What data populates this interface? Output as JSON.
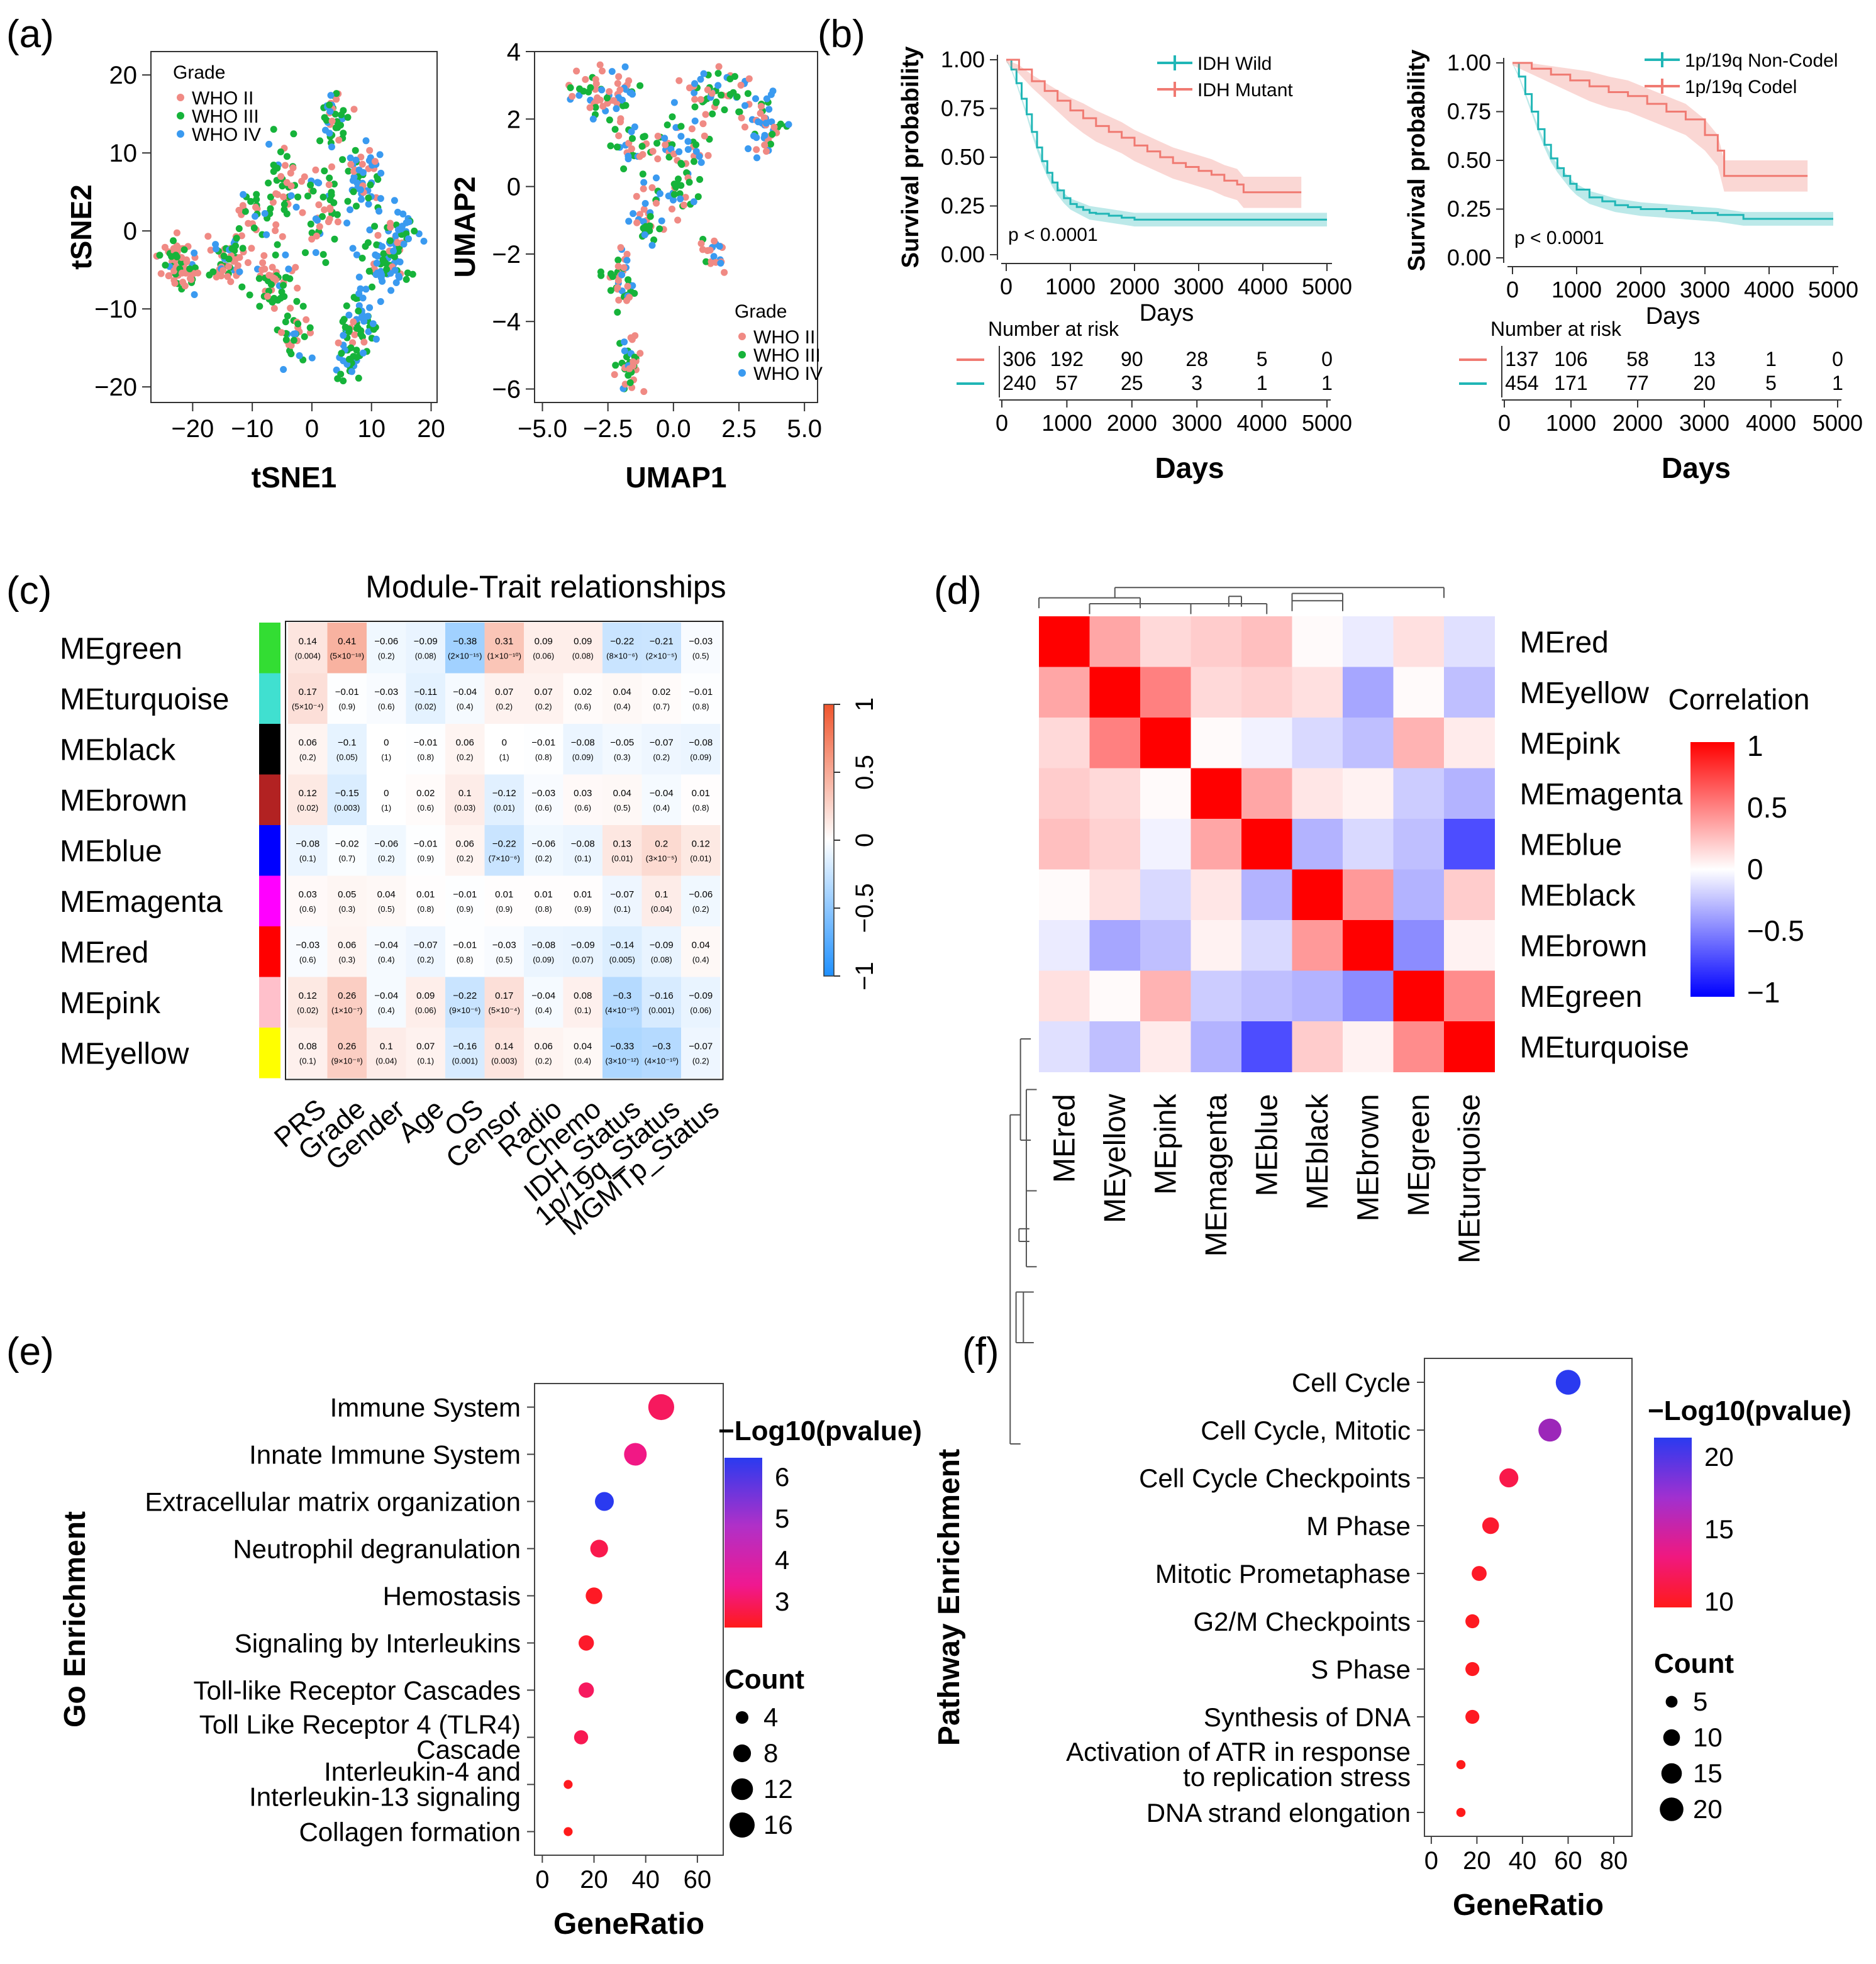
{
  "palette": {
    "who2": "#F08A84",
    "who3": "#16B33A",
    "who4": "#3A9AF0",
    "idh_wild": "#20B6B6",
    "idh_mut": "#F07A72",
    "hm_neg": "#1E90FF",
    "hm_pos": "#F0552D",
    "cor_neg": "#0000FF",
    "cor_pos": "#FF0000",
    "dot_low": "#FF1A1A",
    "dot_high": "#2A3AF0"
  },
  "panels": {
    "a": "(a)",
    "b": "(b)",
    "c": "(c)",
    "d": "(d)",
    "e": "(e)",
    "f": "(f)"
  },
  "chart_data": [
    {
      "id": "tsne",
      "type": "scatter",
      "xlabel": "tSNE1",
      "ylabel": "tSNE2",
      "xlim": [
        -27,
        21
      ],
      "ylim": [
        -22,
        23
      ],
      "xticks": [
        -20,
        -10,
        0,
        10,
        20
      ],
      "yticks": [
        20,
        10,
        0,
        -10,
        -20
      ],
      "xtick_labels": [
        "−20",
        "−10",
        "0",
        "10",
        "20"
      ],
      "ytick_labels": [
        "20",
        "10",
        "0",
        "−10",
        "−20"
      ],
      "legend": {
        "title": "Grade",
        "position": "top-left",
        "entries": [
          "WHO II",
          "WHO III",
          "WHO IV"
        ]
      }
    },
    {
      "id": "umap",
      "type": "scatter",
      "xlabel": "UMAP1",
      "ylabel": "UMAP2",
      "xlim": [
        -5.3,
        5.5
      ],
      "ylim": [
        -6.4,
        4.0
      ],
      "xticks": [
        -5,
        -2.5,
        0,
        2.5,
        5
      ],
      "yticks": [
        4,
        2,
        0,
        -2,
        -4,
        -6
      ],
      "xtick_labels": [
        "−5.0",
        "−2.5",
        "0.0",
        "2.5",
        "5.0"
      ],
      "ytick_labels": [
        "4",
        "2",
        "0",
        "−2",
        "−4",
        "−6"
      ],
      "legend": {
        "title": "Grade",
        "position": "bottom-right",
        "entries": [
          "WHO II",
          "WHO III",
          "WHO IV"
        ]
      }
    },
    {
      "id": "km_idh",
      "type": "line",
      "ylabel": "Survival probability",
      "xlabel": "Days",
      "xlim": [
        0,
        5000
      ],
      "ylim": [
        0,
        1
      ],
      "xticks": [
        0,
        1000,
        2000,
        3000,
        4000,
        5000
      ],
      "yticks": [
        1,
        0.75,
        0.5,
        0.25,
        0
      ],
      "ytick_labels": [
        "1.00",
        "0.75",
        "0.50",
        "0.25",
        "0.00"
      ],
      "pvalue": "p < 0.0001",
      "series": [
        {
          "name": "IDH Wild",
          "color_key": "idh_wild",
          "x": [
            0,
            80,
            160,
            240,
            320,
            400,
            480,
            560,
            640,
            720,
            800,
            900,
            1000,
            1100,
            1200,
            1300,
            1400,
            1600,
            1800,
            2000,
            2200,
            2500,
            3000,
            3500,
            4000,
            4500,
            5000
          ],
          "y": [
            1.0,
            0.95,
            0.88,
            0.8,
            0.72,
            0.63,
            0.55,
            0.48,
            0.42,
            0.37,
            0.33,
            0.29,
            0.26,
            0.245,
            0.23,
            0.215,
            0.21,
            0.2,
            0.19,
            0.18,
            0.18,
            0.18,
            0.18,
            0.18,
            0.18,
            0.18,
            0.18
          ]
        },
        {
          "name": "IDH Mutant",
          "color_key": "idh_mut",
          "x": [
            0,
            200,
            400,
            600,
            800,
            1000,
            1200,
            1400,
            1600,
            1800,
            2000,
            2200,
            2400,
            2600,
            2800,
            3000,
            3200,
            3400,
            3600,
            3700,
            3900,
            4600
          ],
          "y": [
            1.0,
            0.95,
            0.89,
            0.84,
            0.79,
            0.74,
            0.7,
            0.66,
            0.63,
            0.6,
            0.56,
            0.53,
            0.5,
            0.47,
            0.45,
            0.43,
            0.41,
            0.38,
            0.36,
            0.32,
            0.32,
            0.32
          ]
        }
      ],
      "risk_table": {
        "title": "Number at risk",
        "rows": [
          [
            "306",
            "192",
            "90",
            "28",
            "5",
            "0"
          ],
          [
            "240",
            "57",
            "25",
            "3",
            "1",
            "1"
          ]
        ]
      }
    },
    {
      "id": "km_codel",
      "type": "line",
      "ylabel": "Survival probability",
      "xlabel": "Days",
      "xlim": [
        0,
        5000
      ],
      "ylim": [
        0,
        1
      ],
      "xticks": [
        0,
        1000,
        2000,
        3000,
        4000,
        5000
      ],
      "yticks": [
        1,
        0.75,
        0.5,
        0.25,
        0
      ],
      "ytick_labels": [
        "1.00",
        "0.75",
        "0.50",
        "0.25",
        "0.00"
      ],
      "pvalue": "p < 0.0001",
      "series": [
        {
          "name": "1p/19q Non-Codel",
          "color_key": "idh_wild",
          "x": [
            0,
            100,
            200,
            300,
            400,
            500,
            600,
            700,
            800,
            900,
            1000,
            1200,
            1400,
            1600,
            1800,
            2000,
            2400,
            2800,
            3200,
            3600,
            4000,
            4600,
            5000
          ],
          "y": [
            1.0,
            0.93,
            0.84,
            0.75,
            0.66,
            0.58,
            0.51,
            0.46,
            0.42,
            0.38,
            0.35,
            0.31,
            0.29,
            0.27,
            0.26,
            0.25,
            0.24,
            0.23,
            0.22,
            0.2,
            0.2,
            0.2,
            0.2
          ]
        },
        {
          "name": "1p/19q Codel",
          "color_key": "idh_mut",
          "x": [
            0,
            300,
            600,
            900,
            1200,
            1500,
            1800,
            2100,
            2400,
            2700,
            3000,
            3200,
            3300,
            4600
          ],
          "y": [
            1.0,
            0.97,
            0.94,
            0.91,
            0.88,
            0.85,
            0.83,
            0.79,
            0.75,
            0.71,
            0.63,
            0.55,
            0.42,
            0.42
          ]
        }
      ],
      "risk_table": {
        "title": "Number at risk",
        "rows": [
          [
            "137",
            "106",
            "58",
            "13",
            "1",
            "0"
          ],
          [
            "454",
            "171",
            "77",
            "20",
            "5",
            "1"
          ]
        ]
      }
    },
    {
      "id": "module_trait",
      "type": "heatmap",
      "title": "Module-Trait relationships",
      "rows": [
        "MEgreen",
        "MEturquoise",
        "MEblack",
        "MEbrown",
        "MEblue",
        "MEmagenta",
        "MEred",
        "MEpink",
        "MEyellow"
      ],
      "row_colors": [
        "#33dd33",
        "#40e0d0",
        "#000000",
        "#b22222",
        "#0000ff",
        "#ff00ff",
        "#ff0000",
        "#ffc0cb",
        "#ffff00"
      ],
      "cols": [
        "PRS",
        "Grade",
        "Gender",
        "Age",
        "OS",
        "Censor",
        "Radio",
        "Chemo",
        "IDH_Status",
        "1p/19q_Status",
        "MGMTp_Status"
      ],
      "values": [
        [
          0.14,
          0.41,
          -0.06,
          -0.09,
          -0.38,
          0.31,
          0.09,
          0.09,
          -0.22,
          -0.21,
          -0.03
        ],
        [
          0.17,
          -0.01,
          -0.03,
          -0.11,
          -0.04,
          0.07,
          0.07,
          0.02,
          0.04,
          0.02,
          -0.01
        ],
        [
          0.06,
          -0.1,
          0,
          -0.01,
          0.06,
          0,
          -0.01,
          -0.08,
          -0.05,
          -0.07,
          -0.08
        ],
        [
          0.12,
          -0.15,
          0,
          0.02,
          0.1,
          -0.12,
          -0.03,
          0.03,
          0.04,
          -0.04,
          0.01
        ],
        [
          -0.08,
          -0.02,
          -0.06,
          -0.01,
          0.06,
          -0.22,
          -0.06,
          -0.08,
          0.13,
          0.2,
          0.12
        ],
        [
          0.03,
          0.05,
          0.04,
          0.01,
          -0.01,
          0.01,
          0.01,
          0.01,
          -0.07,
          0.1,
          -0.06
        ],
        [
          -0.03,
          0.06,
          -0.04,
          -0.07,
          -0.01,
          -0.03,
          -0.08,
          -0.09,
          -0.14,
          -0.09,
          0.04
        ],
        [
          0.12,
          0.26,
          -0.04,
          0.09,
          -0.22,
          0.17,
          -0.04,
          0.08,
          -0.3,
          -0.16,
          -0.09
        ],
        [
          0.08,
          0.26,
          0.1,
          0.07,
          -0.16,
          0.14,
          0.06,
          0.04,
          -0.33,
          -0.3,
          -0.07
        ]
      ],
      "labels": [
        [
          "0.14",
          "0.41",
          "−0.06",
          "−0.09",
          "−0.38",
          "0.31",
          "0.09",
          "0.09",
          "−0.22",
          "−0.21",
          "−0.03"
        ],
        [
          "0.17",
          "−0.01",
          "−0.03",
          "−0.11",
          "−0.04",
          "0.07",
          "0.07",
          "0.02",
          "0.04",
          "0.02",
          "−0.01"
        ],
        [
          "0.06",
          "−0.1",
          "0",
          "−0.01",
          "0.06",
          "0",
          "−0.01",
          "−0.08",
          "−0.05",
          "−0.07",
          "−0.08"
        ],
        [
          "0.12",
          "−0.15",
          "0",
          "0.02",
          "0.1",
          "−0.12",
          "−0.03",
          "0.03",
          "0.04",
          "−0.04",
          "0.01"
        ],
        [
          "−0.08",
          "−0.02",
          "−0.06",
          "−0.01",
          "0.06",
          "−0.22",
          "−0.06",
          "−0.08",
          "0.13",
          "0.2",
          "0.12"
        ],
        [
          "0.03",
          "0.05",
          "0.04",
          "0.01",
          "−0.01",
          "0.01",
          "0.01",
          "0.01",
          "−0.07",
          "0.1",
          "−0.06"
        ],
        [
          "−0.03",
          "0.06",
          "−0.04",
          "−0.07",
          "−0.01",
          "−0.03",
          "−0.08",
          "−0.09",
          "−0.14",
          "−0.09",
          "0.04"
        ],
        [
          "0.12",
          "0.26",
          "−0.04",
          "0.09",
          "−0.22",
          "0.17",
          "−0.04",
          "0.08",
          "−0.3",
          "−0.16",
          "−0.09"
        ],
        [
          "0.08",
          "0.26",
          "0.1",
          "0.07",
          "−0.16",
          "0.14",
          "0.06",
          "0.04",
          "−0.33",
          "−0.3",
          "−0.07"
        ]
      ],
      "pvals": [
        [
          "(0.004)",
          "(5×10⁻¹⁸)",
          "(0.2)",
          "(0.08)",
          "(2×10⁻¹⁵)",
          "(1×10⁻¹⁰)",
          "(0.06)",
          "(0.08)",
          "(8×10⁻⁶)",
          "(2×10⁻⁵)",
          "(0.5)"
        ],
        [
          "(5×10⁻⁴)",
          "(0.9)",
          "(0.6)",
          "(0.02)",
          "(0.4)",
          "(0.2)",
          "(0.2)",
          "(0.6)",
          "(0.4)",
          "(0.7)",
          "(0.8)"
        ],
        [
          "(0.2)",
          "(0.05)",
          "(1)",
          "(0.8)",
          "(0.2)",
          "(1)",
          "(0.8)",
          "(0.09)",
          "(0.3)",
          "(0.2)",
          "(0.09)"
        ],
        [
          "(0.02)",
          "(0.003)",
          "(1)",
          "(0.6)",
          "(0.03)",
          "(0.01)",
          "(0.6)",
          "(0.6)",
          "(0.5)",
          "(0.4)",
          "(0.8)"
        ],
        [
          "(0.1)",
          "(0.7)",
          "(0.2)",
          "(0.9)",
          "(0.2)",
          "(7×10⁻⁶)",
          "(0.2)",
          "(0.1)",
          "(0.01)",
          "(3×10⁻⁵)",
          "(0.01)"
        ],
        [
          "(0.6)",
          "(0.3)",
          "(0.5)",
          "(0.8)",
          "(0.9)",
          "(0.9)",
          "(0.8)",
          "(0.9)",
          "(0.1)",
          "(0.04)",
          "(0.2)"
        ],
        [
          "(0.6)",
          "(0.3)",
          "(0.4)",
          "(0.2)",
          "(0.8)",
          "(0.5)",
          "(0.09)",
          "(0.07)",
          "(0.005)",
          "(0.08)",
          "(0.4)"
        ],
        [
          "(0.02)",
          "(1×10⁻⁷)",
          "(0.4)",
          "(0.06)",
          "(9×10⁻⁶)",
          "(5×10⁻⁴)",
          "(0.4)",
          "(0.1)",
          "(4×10⁻¹⁰)",
          "(0.001)",
          "(0.06)"
        ],
        [
          "(0.1)",
          "(9×10⁻⁸)",
          "(0.04)",
          "(0.1)",
          "(0.001)",
          "(0.003)",
          "(0.2)",
          "(0.4)",
          "(3×10⁻¹²)",
          "(4×10⁻¹⁰)",
          "(0.2)"
        ]
      ],
      "scale": {
        "ticks": [
          "1",
          "0.5",
          "0",
          "−0.5",
          "−1"
        ]
      }
    },
    {
      "id": "module_cor",
      "type": "heatmap",
      "legend_title": "Correlation",
      "order": [
        "MEred",
        "MEyellow",
        "MEpink",
        "MEmagenta",
        "MEblue",
        "MEblack",
        "MEbrown",
        "MEgreen",
        "MEturquoise"
      ],
      "matrix": [
        [
          1,
          0.35,
          0.15,
          0.2,
          0.25,
          0.02,
          -0.08,
          0.12,
          -0.12
        ],
        [
          0.35,
          1,
          0.5,
          0.15,
          0.18,
          0.12,
          -0.35,
          0.02,
          -0.25
        ],
        [
          0.15,
          0.5,
          1,
          0.02,
          -0.05,
          -0.15,
          -0.25,
          0.3,
          0.08
        ],
        [
          0.2,
          0.15,
          0.02,
          1,
          0.35,
          0.1,
          0.05,
          -0.2,
          -0.3
        ],
        [
          0.25,
          0.18,
          -0.05,
          0.35,
          1,
          -0.3,
          -0.15,
          -0.25,
          -0.7
        ],
        [
          0.02,
          0.12,
          -0.15,
          0.1,
          -0.3,
          1,
          0.4,
          -0.3,
          0.2
        ],
        [
          -0.08,
          -0.35,
          -0.25,
          0.05,
          -0.15,
          0.4,
          1,
          -0.45,
          0.05
        ],
        [
          0.12,
          0.02,
          0.3,
          -0.2,
          -0.25,
          -0.3,
          -0.45,
          1,
          0.45
        ],
        [
          -0.12,
          -0.25,
          0.08,
          -0.3,
          -0.7,
          0.2,
          0.05,
          0.45,
          1
        ]
      ],
      "scale": {
        "ticks": [
          "1",
          "0.5",
          "0",
          "−0.5",
          "−1"
        ]
      }
    },
    {
      "id": "go_enrich",
      "type": "scatter",
      "ylabel": "Go Enrichment",
      "xlabel": "GeneRatio",
      "xlim": [
        -3,
        70
      ],
      "xticks": [
        0,
        20,
        40,
        60
      ],
      "legend_color_title": "−Log10(pvalue)",
      "color_ticks": [
        "6",
        "5",
        "4",
        "3"
      ],
      "size_title": "Count",
      "size_ticks": [
        "4",
        "8",
        "12",
        "16"
      ],
      "terms": [
        [
          "Immune System"
        ],
        [
          "Innate Immune System"
        ],
        [
          "Extracellular matrix organization"
        ],
        [
          "Neutrophil degranulation"
        ],
        [
          "Hemostasis"
        ],
        [
          "Signaling by Interleukins"
        ],
        [
          "Toll-like Receptor Cascades"
        ],
        [
          "Toll Like Receptor 4 (TLR4)",
          "Cascade"
        ],
        [
          "Interleukin-4 and",
          "Interleukin-13 signaling"
        ],
        [
          "Collagen formation"
        ]
      ],
      "generatio": [
        46,
        36,
        24,
        22,
        20,
        17,
        17,
        15,
        10,
        10
      ],
      "neglog10p": [
        3.6,
        4.3,
        6.2,
        3.3,
        2.6,
        2.7,
        3.6,
        3.4,
        2.5,
        2.4
      ],
      "count": [
        17,
        13,
        9,
        8,
        7,
        6,
        6,
        5,
        2,
        2
      ]
    },
    {
      "id": "pathway_enrich",
      "type": "scatter",
      "ylabel": "Pathway Enrichment",
      "xlabel": "GeneRatio",
      "xlim": [
        -3,
        88
      ],
      "xticks": [
        0,
        20,
        40,
        60,
        80
      ],
      "legend_color_title": "−Log10(pvalue)",
      "color_ticks": [
        "20",
        "15",
        "10"
      ],
      "size_title": "Count",
      "size_ticks": [
        "5",
        "10",
        "15",
        "20"
      ],
      "terms": [
        [
          "Cell Cycle"
        ],
        [
          "Cell Cycle, Mitotic"
        ],
        [
          "Cell Cycle Checkpoints"
        ],
        [
          "M Phase"
        ],
        [
          "Mitotic Prometaphase"
        ],
        [
          "G2/M Checkpoints"
        ],
        [
          "S Phase"
        ],
        [
          "Synthesis of DNA"
        ],
        [
          "Activation of ATR in response",
          "to replication stress"
        ],
        [
          "DNA strand elongation"
        ]
      ],
      "generatio": [
        60,
        52,
        34,
        26,
        21,
        18,
        18,
        18,
        13,
        13
      ],
      "neglog10p": [
        21,
        17,
        9,
        7,
        6.5,
        6,
        6,
        6,
        5.5,
        5.5
      ],
      "count": [
        22,
        19,
        13,
        10,
        8,
        7,
        7,
        7,
        3,
        3
      ]
    }
  ]
}
